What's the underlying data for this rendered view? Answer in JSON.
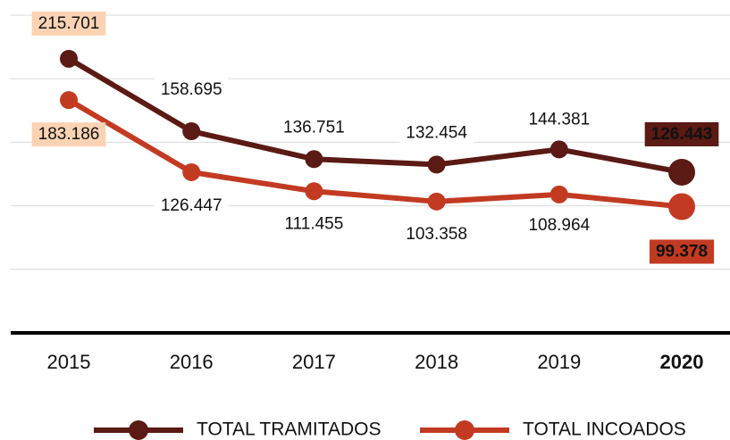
{
  "chart_data": {
    "type": "line",
    "categories": [
      "2015",
      "2016",
      "2017",
      "2018",
      "2019",
      "2020"
    ],
    "series": [
      {
        "name": "TOTAL TRAMITADOS",
        "color": "#5b1a14",
        "values": [
          215701,
          158695,
          136751,
          132454,
          144381,
          126443
        ],
        "value_labels": [
          "215.701",
          "158.695",
          "136.751",
          "132.454",
          "144.381",
          "126.443"
        ]
      },
      {
        "name": "TOTAL INCOADOS",
        "color": "#c33a22",
        "values": [
          183186,
          126447,
          111455,
          103358,
          108964,
          99378
        ],
        "value_labels": [
          "183.186",
          "126.447",
          "111.455",
          "103.358",
          "108.964",
          "99.378"
        ]
      }
    ],
    "ylim": [
      0,
      250000
    ],
    "yticks": [
      0,
      50000,
      100000,
      150000,
      200000,
      250000
    ],
    "grid": true
  }
}
